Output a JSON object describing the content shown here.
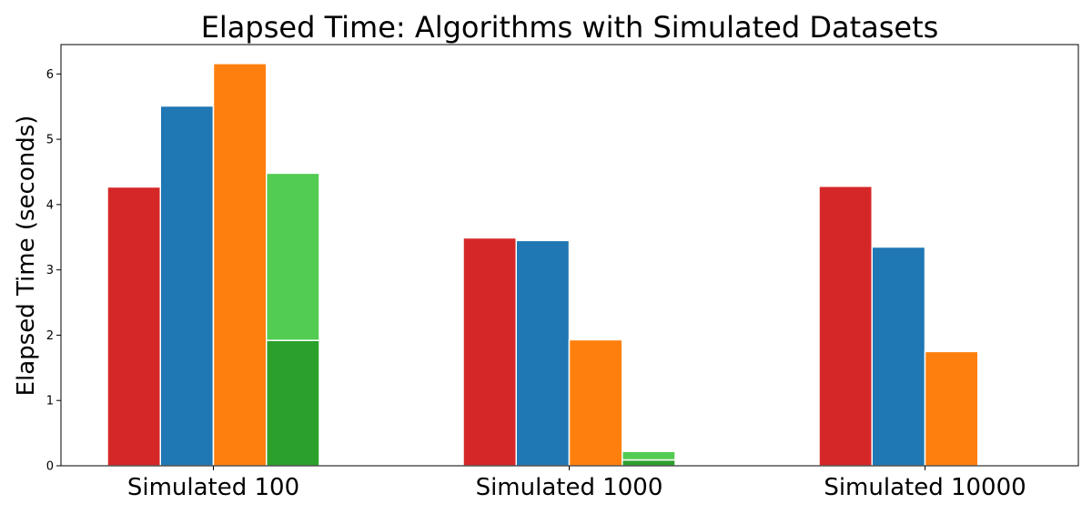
{
  "chart_data": {
    "type": "bar",
    "title": "Elapsed Time: Algorithms with Simulated Datasets",
    "xlabel": "",
    "ylabel": "Elapsed Time (seconds)",
    "categories": [
      "Simulated 100",
      "Simulated 1000",
      "Simulated 10000"
    ],
    "ylim": [
      0,
      6.45
    ],
    "yticks": [
      0,
      1,
      2,
      3,
      4,
      5,
      6
    ],
    "grid": false,
    "series": [
      {
        "color": "#d62728",
        "values": [
          4.27,
          3.49,
          4.28
        ]
      },
      {
        "color": "#1f77b4",
        "values": [
          5.51,
          3.45,
          3.35
        ]
      },
      {
        "color": "#ff7f0e",
        "values": [
          6.16,
          1.93,
          1.75
        ]
      },
      {
        "stacked": true,
        "segments": [
          {
            "color": "#2ca02c",
            "values": [
              1.92,
              0.09,
              0
            ]
          },
          {
            "color": "#52cc52",
            "values": [
              2.56,
              0.13,
              0
            ]
          }
        ]
      }
    ]
  }
}
